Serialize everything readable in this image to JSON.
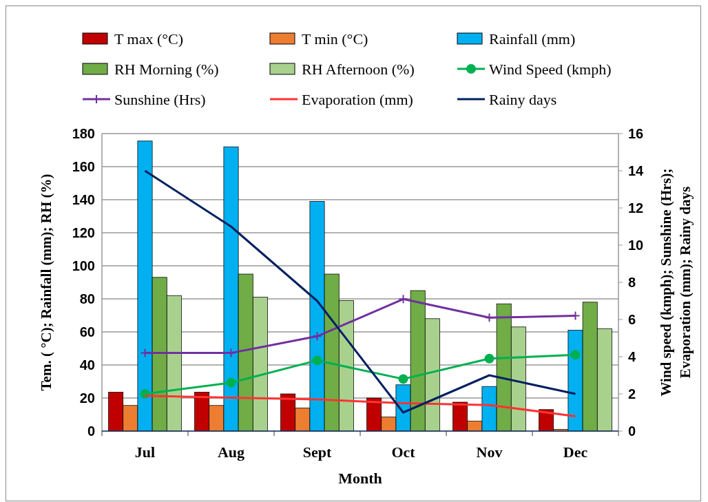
{
  "chart_data": {
    "type": "bar",
    "xlabel": "Month",
    "ylabel": "Tem. ( °C); Rainfall (mm); RH (%)",
    "y2label": "Wind speed (kmph); Sunshine (Hrs); Evaporation (mm); Rainy days",
    "categories": [
      "Jul",
      "Aug",
      "Sept",
      "Oct",
      "Nov",
      "Dec"
    ],
    "series": [
      {
        "name": "T max (°C)",
        "color": "#c00000",
        "values": [
          23.5,
          23.5,
          22.5,
          20,
          17.5,
          13
        ]
      },
      {
        "name": "T min (°C)",
        "color": "#ed7d31",
        "values": [
          15.5,
          15.5,
          14,
          8.5,
          6,
          1
        ]
      },
      {
        "name": "Rainfall (mm)",
        "color": "#00b0f0",
        "values": [
          175.5,
          172,
          139,
          28,
          27,
          61
        ]
      },
      {
        "name": "RH Morning (%)",
        "color": "#70ad47",
        "values": [
          93,
          95,
          95,
          85,
          77,
          78
        ]
      },
      {
        "name": "RH Afternoon (%)",
        "color": "#a9d18e",
        "values": [
          82,
          81,
          79,
          68,
          63,
          62
        ]
      },
      {
        "name": "Wind Speed (kmph)",
        "type": "line",
        "axis": "y2",
        "marker": "circle",
        "color": "#00b050",
        "values": [
          2.0,
          2.6,
          3.8,
          2.8,
          3.9,
          4.1
        ]
      },
      {
        "name": "Sunshine (Hrs)",
        "type": "line",
        "axis": "y2",
        "marker": "cross",
        "color": "#7030a0",
        "values": [
          4.2,
          4.2,
          5.1,
          7.1,
          6.1,
          6.2
        ]
      },
      {
        "name": "Evaporation (mm)",
        "type": "line",
        "axis": "y2",
        "marker": "none",
        "color": "#ff3333",
        "values": [
          1.9,
          1.8,
          1.7,
          1.5,
          1.4,
          0.8
        ]
      },
      {
        "name": "Rainy days",
        "type": "line",
        "axis": "y2",
        "marker": "none",
        "color": "#002060",
        "values": [
          14,
          11,
          7,
          1,
          3,
          2
        ]
      }
    ],
    "ylim": [
      0,
      180
    ],
    "yticks": [
      0,
      20,
      40,
      60,
      80,
      100,
      120,
      140,
      160,
      180
    ],
    "y2lim": [
      0,
      16
    ],
    "y2ticks": [
      0,
      2,
      4,
      6,
      8,
      10,
      12,
      14,
      16
    ],
    "grid": "y",
    "legend": "top"
  }
}
